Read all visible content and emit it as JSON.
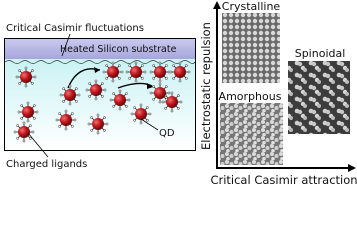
{
  "left_panel": {
    "fluctuations_label": "Critical Casimir fluctuations",
    "substrate_label": "Heated Silicon substrate",
    "qd_label": "QD",
    "ligands_label": "Charged ligands"
  },
  "right_panel": {
    "y_axis_label": "Electrostatic repulsion",
    "x_axis_label": "Critical Casimir attraction",
    "phases": [
      "Crystalline",
      "Amorphous",
      "Spinoidal"
    ]
  }
}
